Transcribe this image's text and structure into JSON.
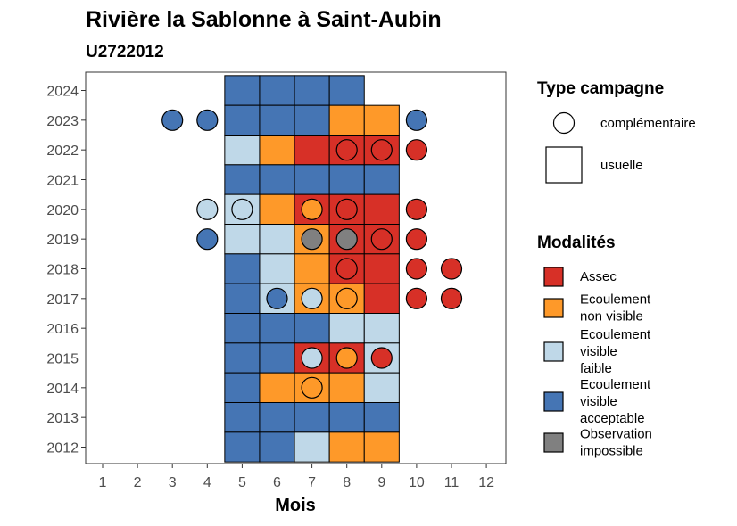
{
  "chart_data": {
    "type": "heatmap",
    "title": "Rivière la Sablonne à Saint-Aubin",
    "subtitle": "U2722012",
    "xlabel": "Mois",
    "ylabel": "",
    "x_ticks": [
      "1",
      "2",
      "3",
      "4",
      "5",
      "6",
      "7",
      "8",
      "9",
      "10",
      "11",
      "12"
    ],
    "y_ticks": [
      "2012",
      "2013",
      "2014",
      "2015",
      "2016",
      "2017",
      "2018",
      "2019",
      "2020",
      "2021",
      "2022",
      "2023",
      "2024"
    ],
    "grid": false,
    "legend_placement": "right",
    "colors": {
      "Assec": "#d73027",
      "Ecoulement non visible": "#fe9929",
      "Ecoulement visible faible": "#bfd8e8",
      "Ecoulement visible acceptable": "#4575b4",
      "Observation impossible": "#808080"
    },
    "legend_campagne": {
      "title": "Type campagne",
      "items": [
        {
          "key": "complementaire",
          "label": "complémentaire",
          "shape": "circle"
        },
        {
          "key": "usuelle",
          "label": "usuelle",
          "shape": "square"
        }
      ]
    },
    "legend_modalites": {
      "title": "Modalités",
      "items": [
        {
          "key": "Assec",
          "lines": [
            "Assec"
          ]
        },
        {
          "key": "Ecoulement non visible",
          "lines": [
            "Ecoulement",
            "non visible"
          ]
        },
        {
          "key": "Ecoulement visible faible",
          "lines": [
            "Ecoulement",
            "visible",
            "faible"
          ]
        },
        {
          "key": "Ecoulement visible acceptable",
          "lines": [
            "Ecoulement",
            "visible",
            "acceptable"
          ]
        },
        {
          "key": "Observation impossible",
          "lines": [
            "Observation",
            "impossible"
          ]
        }
      ]
    },
    "usuelle": [
      {
        "year": 2024,
        "month": 5,
        "modalite": "Ecoulement visible acceptable"
      },
      {
        "year": 2024,
        "month": 6,
        "modalite": "Ecoulement visible acceptable"
      },
      {
        "year": 2024,
        "month": 7,
        "modalite": "Ecoulement visible acceptable"
      },
      {
        "year": 2024,
        "month": 8,
        "modalite": "Ecoulement visible acceptable"
      },
      {
        "year": 2023,
        "month": 5,
        "modalite": "Ecoulement visible acceptable"
      },
      {
        "year": 2023,
        "month": 6,
        "modalite": "Ecoulement visible acceptable"
      },
      {
        "year": 2023,
        "month": 7,
        "modalite": "Ecoulement visible acceptable"
      },
      {
        "year": 2023,
        "month": 8,
        "modalite": "Ecoulement non visible"
      },
      {
        "year": 2023,
        "month": 9,
        "modalite": "Ecoulement non visible"
      },
      {
        "year": 2022,
        "month": 5,
        "modalite": "Ecoulement visible faible"
      },
      {
        "year": 2022,
        "month": 6,
        "modalite": "Ecoulement non visible"
      },
      {
        "year": 2022,
        "month": 7,
        "modalite": "Assec"
      },
      {
        "year": 2022,
        "month": 8,
        "modalite": "Assec"
      },
      {
        "year": 2022,
        "month": 9,
        "modalite": "Assec"
      },
      {
        "year": 2021,
        "month": 5,
        "modalite": "Ecoulement visible acceptable"
      },
      {
        "year": 2021,
        "month": 6,
        "modalite": "Ecoulement visible acceptable"
      },
      {
        "year": 2021,
        "month": 7,
        "modalite": "Ecoulement visible acceptable"
      },
      {
        "year": 2021,
        "month": 8,
        "modalite": "Ecoulement visible acceptable"
      },
      {
        "year": 2021,
        "month": 9,
        "modalite": "Ecoulement visible acceptable"
      },
      {
        "year": 2020,
        "month": 5,
        "modalite": "Ecoulement visible faible"
      },
      {
        "year": 2020,
        "month": 6,
        "modalite": "Ecoulement non visible"
      },
      {
        "year": 2020,
        "month": 7,
        "modalite": "Assec"
      },
      {
        "year": 2020,
        "month": 8,
        "modalite": "Assec"
      },
      {
        "year": 2020,
        "month": 9,
        "modalite": "Assec"
      },
      {
        "year": 2019,
        "month": 5,
        "modalite": "Ecoulement visible faible"
      },
      {
        "year": 2019,
        "month": 6,
        "modalite": "Ecoulement visible faible"
      },
      {
        "year": 2019,
        "month": 7,
        "modalite": "Ecoulement non visible"
      },
      {
        "year": 2019,
        "month": 8,
        "modalite": "Assec"
      },
      {
        "year": 2019,
        "month": 9,
        "modalite": "Assec"
      },
      {
        "year": 2018,
        "month": 5,
        "modalite": "Ecoulement visible acceptable"
      },
      {
        "year": 2018,
        "month": 6,
        "modalite": "Ecoulement visible faible"
      },
      {
        "year": 2018,
        "month": 7,
        "modalite": "Ecoulement non visible"
      },
      {
        "year": 2018,
        "month": 8,
        "modalite": "Assec"
      },
      {
        "year": 2018,
        "month": 9,
        "modalite": "Assec"
      },
      {
        "year": 2017,
        "month": 5,
        "modalite": "Ecoulement visible acceptable"
      },
      {
        "year": 2017,
        "month": 6,
        "modalite": "Ecoulement visible faible"
      },
      {
        "year": 2017,
        "month": 7,
        "modalite": "Ecoulement non visible"
      },
      {
        "year": 2017,
        "month": 8,
        "modalite": "Ecoulement non visible"
      },
      {
        "year": 2017,
        "month": 9,
        "modalite": "Assec"
      },
      {
        "year": 2016,
        "month": 5,
        "modalite": "Ecoulement visible acceptable"
      },
      {
        "year": 2016,
        "month": 6,
        "modalite": "Ecoulement visible acceptable"
      },
      {
        "year": 2016,
        "month": 7,
        "modalite": "Ecoulement visible acceptable"
      },
      {
        "year": 2016,
        "month": 8,
        "modalite": "Ecoulement visible faible"
      },
      {
        "year": 2016,
        "month": 9,
        "modalite": "Ecoulement visible faible"
      },
      {
        "year": 2015,
        "month": 5,
        "modalite": "Ecoulement visible acceptable"
      },
      {
        "year": 2015,
        "month": 6,
        "modalite": "Ecoulement visible acceptable"
      },
      {
        "year": 2015,
        "month": 7,
        "modalite": "Assec"
      },
      {
        "year": 2015,
        "month": 8,
        "modalite": "Assec"
      },
      {
        "year": 2015,
        "month": 9,
        "modalite": "Ecoulement visible faible"
      },
      {
        "year": 2014,
        "month": 5,
        "modalite": "Ecoulement visible acceptable"
      },
      {
        "year": 2014,
        "month": 6,
        "modalite": "Ecoulement non visible"
      },
      {
        "year": 2014,
        "month": 7,
        "modalite": "Ecoulement non visible"
      },
      {
        "year": 2014,
        "month": 8,
        "modalite": "Ecoulement non visible"
      },
      {
        "year": 2014,
        "month": 9,
        "modalite": "Ecoulement visible faible"
      },
      {
        "year": 2013,
        "month": 5,
        "modalite": "Ecoulement visible acceptable"
      },
      {
        "year": 2013,
        "month": 6,
        "modalite": "Ecoulement visible acceptable"
      },
      {
        "year": 2013,
        "month": 7,
        "modalite": "Ecoulement visible acceptable"
      },
      {
        "year": 2013,
        "month": 8,
        "modalite": "Ecoulement visible acceptable"
      },
      {
        "year": 2013,
        "month": 9,
        "modalite": "Ecoulement visible acceptable"
      },
      {
        "year": 2012,
        "month": 5,
        "modalite": "Ecoulement visible acceptable"
      },
      {
        "year": 2012,
        "month": 6,
        "modalite": "Ecoulement visible acceptable"
      },
      {
        "year": 2012,
        "month": 7,
        "modalite": "Ecoulement visible faible"
      },
      {
        "year": 2012,
        "month": 8,
        "modalite": "Ecoulement non visible"
      },
      {
        "year": 2012,
        "month": 9,
        "modalite": "Ecoulement non visible"
      }
    ],
    "complementaire": [
      {
        "year": 2023,
        "month": 3,
        "modalite": "Ecoulement visible acceptable"
      },
      {
        "year": 2023,
        "month": 4,
        "modalite": "Ecoulement visible acceptable"
      },
      {
        "year": 2023,
        "month": 10,
        "modalite": "Ecoulement visible acceptable"
      },
      {
        "year": 2022,
        "month": 8,
        "modalite": "Assec"
      },
      {
        "year": 2022,
        "month": 9,
        "modalite": "Assec"
      },
      {
        "year": 2022,
        "month": 10,
        "modalite": "Assec"
      },
      {
        "year": 2020,
        "month": 4,
        "modalite": "Ecoulement visible faible"
      },
      {
        "year": 2020,
        "month": 5,
        "modalite": "Ecoulement visible faible"
      },
      {
        "year": 2020,
        "month": 7,
        "modalite": "Ecoulement non visible"
      },
      {
        "year": 2020,
        "month": 8,
        "modalite": "Assec"
      },
      {
        "year": 2020,
        "month": 10,
        "modalite": "Assec"
      },
      {
        "year": 2019,
        "month": 4,
        "modalite": "Ecoulement visible acceptable"
      },
      {
        "year": 2019,
        "month": 7,
        "modalite": "Observation impossible"
      },
      {
        "year": 2019,
        "month": 8,
        "modalite": "Observation impossible"
      },
      {
        "year": 2019,
        "month": 9,
        "modalite": "Assec"
      },
      {
        "year": 2019,
        "month": 10,
        "modalite": "Assec"
      },
      {
        "year": 2018,
        "month": 8,
        "modalite": "Assec"
      },
      {
        "year": 2018,
        "month": 10,
        "modalite": "Assec"
      },
      {
        "year": 2018,
        "month": 11,
        "modalite": "Assec"
      },
      {
        "year": 2017,
        "month": 6,
        "modalite": "Ecoulement visible acceptable"
      },
      {
        "year": 2017,
        "month": 7,
        "modalite": "Ecoulement visible faible"
      },
      {
        "year": 2017,
        "month": 8,
        "modalite": "Ecoulement non visible"
      },
      {
        "year": 2017,
        "month": 10,
        "modalite": "Assec"
      },
      {
        "year": 2017,
        "month": 11,
        "modalite": "Assec"
      },
      {
        "year": 2015,
        "month": 7,
        "modalite": "Ecoulement visible faible"
      },
      {
        "year": 2015,
        "month": 8,
        "modalite": "Ecoulement non visible"
      },
      {
        "year": 2015,
        "month": 9,
        "modalite": "Assec"
      },
      {
        "year": 2014,
        "month": 7,
        "modalite": "Ecoulement non visible"
      }
    ]
  }
}
